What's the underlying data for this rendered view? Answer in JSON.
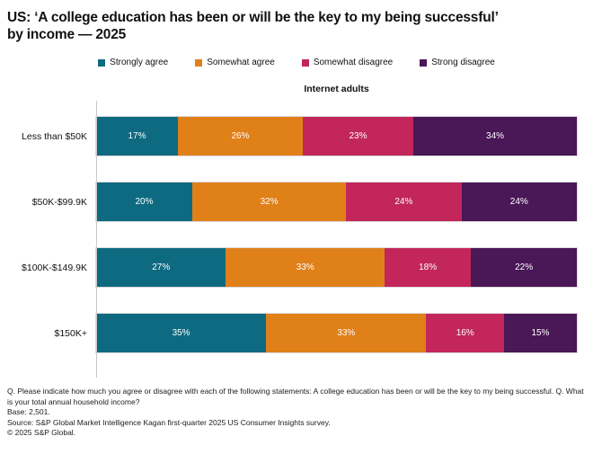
{
  "chart": {
    "title_lines": [
      "US: ‘A college education has been or will be the key to my being successful’",
      "by income — 2025"
    ],
    "subtitle": "Internet adults"
  },
  "chart_data": {
    "type": "bar",
    "orientation": "horizontal",
    "stacked": true,
    "title": "US: ‘A college education has been or will be the key to my being successful’ by income — 2025",
    "subtitle": "Internet adults",
    "categories": [
      "Less than $50K",
      "$50K-$99.9K",
      "$100K-$149.9K",
      "$150K+"
    ],
    "series": [
      {
        "name": "Strongly agree",
        "color": "#0E6A80",
        "values": [
          17,
          20,
          27,
          35
        ]
      },
      {
        "name": "Somewhat agree",
        "color": "#E08018",
        "values": [
          26,
          32,
          33,
          33
        ]
      },
      {
        "name": "Somewhat disagree",
        "color": "#C2265A",
        "values": [
          23,
          24,
          18,
          16
        ]
      },
      {
        "name": "Strong disagree",
        "color": "#4A1757",
        "values": [
          34,
          24,
          22,
          15
        ]
      }
    ],
    "value_suffix": "%",
    "xlabel": "",
    "ylabel": "",
    "xlim": [
      0,
      100
    ],
    "grid": false,
    "legend_position": "top"
  },
  "footnotes": {
    "question": "Q. Please indicate how much you agree or disagree with each of the following statements: A college education has been or will be the key to my being successful. Q. What is your total annual household income?",
    "base": "Base: 2,501.",
    "source": "Source: S&P Global Market Intelligence Kagan first-quarter 2025 US Consumer Insights survey.",
    "copyright": "© 2025 S&P Global."
  },
  "colors": {
    "axis_line": "#c9c9c9",
    "text": "#111111",
    "bar_label": "#ffffff"
  }
}
